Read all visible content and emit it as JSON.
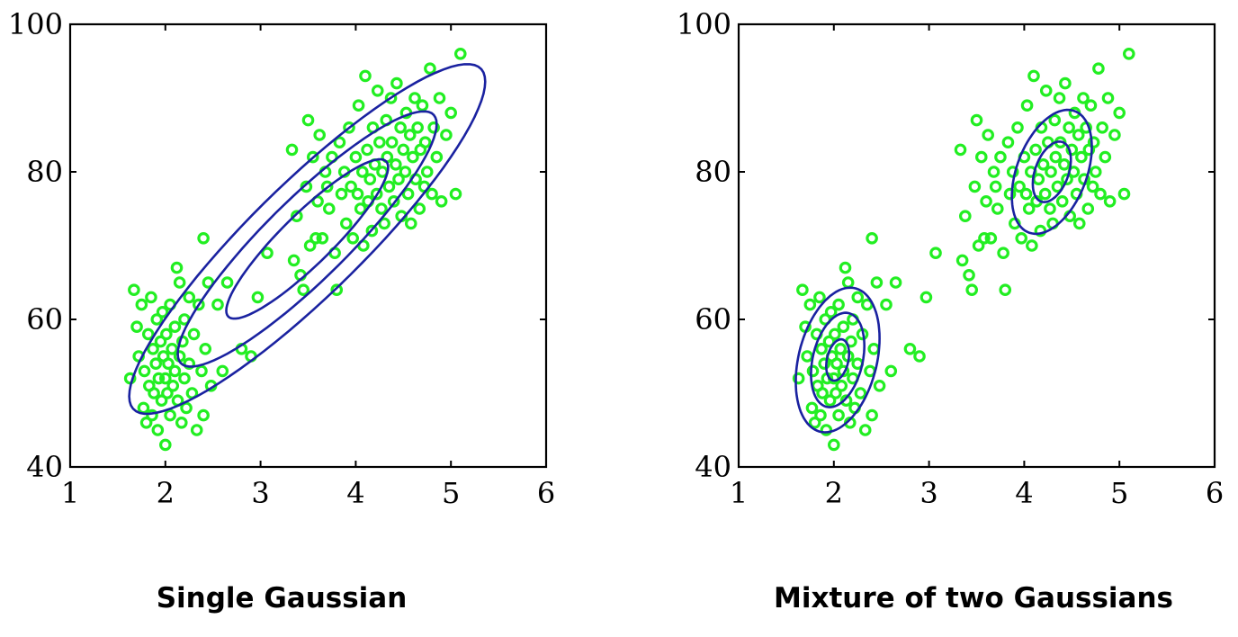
{
  "chart_data": [
    {
      "type": "scatter",
      "caption": "Single Gaussian",
      "xlim": [
        1,
        6
      ],
      "ylim": [
        40,
        100
      ],
      "xticks": [
        "1",
        "2",
        "3",
        "4",
        "5",
        "6"
      ],
      "yticks": [
        "40",
        "60",
        "80",
        "100"
      ],
      "grid": false,
      "marker_color": "#22ee22",
      "contour_color": "#1a22a0",
      "contours": [
        {
          "cx": 3.49,
          "cy": 70.9,
          "rx": 0.85,
          "ry": 10.8,
          "rho": 0.9
        },
        {
          "cx": 3.49,
          "cy": 70.9,
          "rx": 1.36,
          "ry": 17.3,
          "rho": 0.9
        },
        {
          "cx": 3.49,
          "cy": 70.9,
          "rx": 1.87,
          "ry": 23.7,
          "rho": 0.9
        }
      ]
    },
    {
      "type": "scatter",
      "caption": "Mixture of two Gaussians",
      "xlim": [
        1,
        6
      ],
      "ylim": [
        40,
        100
      ],
      "xticks": [
        "1",
        "2",
        "3",
        "4",
        "5",
        "6"
      ],
      "yticks": [
        "40",
        "60",
        "80",
        "100"
      ],
      "grid": false,
      "marker_color": "#22ee22",
      "contour_color": "#1a22a0",
      "contours": [
        {
          "cx": 2.04,
          "cy": 54.5,
          "rx": 0.12,
          "ry": 2.8,
          "rho": 0.3
        },
        {
          "cx": 2.04,
          "cy": 54.5,
          "rx": 0.28,
          "ry": 6.4,
          "rho": 0.3
        },
        {
          "cx": 2.04,
          "cy": 54.5,
          "rx": 0.44,
          "ry": 9.8,
          "rho": 0.3
        },
        {
          "cx": 4.29,
          "cy": 80.0,
          "rx": 0.2,
          "ry": 4.1,
          "rho": 0.4
        },
        {
          "cx": 4.29,
          "cy": 80.0,
          "rx": 0.42,
          "ry": 8.4,
          "rho": 0.4
        }
      ]
    }
  ],
  "scatter_points": [
    [
      1.63,
      52
    ],
    [
      1.67,
      64
    ],
    [
      1.7,
      59
    ],
    [
      1.72,
      55
    ],
    [
      1.75,
      62
    ],
    [
      1.77,
      48
    ],
    [
      1.78,
      53
    ],
    [
      1.8,
      46
    ],
    [
      1.82,
      58
    ],
    [
      1.83,
      51
    ],
    [
      1.85,
      63
    ],
    [
      1.86,
      47
    ],
    [
      1.87,
      56
    ],
    [
      1.88,
      50
    ],
    [
      1.9,
      54
    ],
    [
      1.91,
      60
    ],
    [
      1.92,
      45
    ],
    [
      1.93,
      52
    ],
    [
      1.95,
      57
    ],
    [
      1.96,
      49
    ],
    [
      1.97,
      61
    ],
    [
      1.98,
      55
    ],
    [
      2.0,
      43
    ],
    [
      2.0,
      52
    ],
    [
      2.01,
      58
    ],
    [
      2.02,
      50
    ],
    [
      2.03,
      54
    ],
    [
      2.05,
      47
    ],
    [
      2.05,
      62
    ],
    [
      2.07,
      56
    ],
    [
      2.08,
      51
    ],
    [
      2.1,
      59
    ],
    [
      2.1,
      53
    ],
    [
      2.12,
      67
    ],
    [
      2.13,
      49
    ],
    [
      2.15,
      55
    ],
    [
      2.15,
      65
    ],
    [
      2.17,
      46
    ],
    [
      2.18,
      57
    ],
    [
      2.2,
      52
    ],
    [
      2.2,
      60
    ],
    [
      2.22,
      48
    ],
    [
      2.25,
      63
    ],
    [
      2.25,
      54
    ],
    [
      2.28,
      50
    ],
    [
      2.3,
      58
    ],
    [
      2.33,
      45
    ],
    [
      2.35,
      62
    ],
    [
      2.38,
      53
    ],
    [
      2.4,
      71
    ],
    [
      2.4,
      47
    ],
    [
      2.42,
      56
    ],
    [
      2.45,
      65
    ],
    [
      2.48,
      51
    ],
    [
      2.55,
      62
    ],
    [
      2.6,
      53
    ],
    [
      2.65,
      65
    ],
    [
      2.8,
      56
    ],
    [
      2.9,
      55
    ],
    [
      2.97,
      63
    ],
    [
      3.07,
      69
    ],
    [
      3.33,
      83
    ],
    [
      3.35,
      68
    ],
    [
      3.38,
      74
    ],
    [
      3.42,
      66
    ],
    [
      3.45,
      64
    ],
    [
      3.48,
      78
    ],
    [
      3.5,
      87
    ],
    [
      3.52,
      70
    ],
    [
      3.55,
      82
    ],
    [
      3.58,
      71
    ],
    [
      3.6,
      76
    ],
    [
      3.62,
      85
    ],
    [
      3.65,
      71
    ],
    [
      3.68,
      80
    ],
    [
      3.7,
      78
    ],
    [
      3.72,
      75
    ],
    [
      3.75,
      82
    ],
    [
      3.78,
      69
    ],
    [
      3.8,
      64
    ],
    [
      3.83,
      84
    ],
    [
      3.85,
      77
    ],
    [
      3.88,
      80
    ],
    [
      3.9,
      73
    ],
    [
      3.93,
      86
    ],
    [
      3.95,
      78
    ],
    [
      3.97,
      71
    ],
    [
      4.0,
      82
    ],
    [
      4.02,
      77
    ],
    [
      4.03,
      89
    ],
    [
      4.05,
      75
    ],
    [
      4.07,
      80
    ],
    [
      4.08,
      70
    ],
    [
      4.1,
      93
    ],
    [
      4.12,
      83
    ],
    [
      4.13,
      76
    ],
    [
      4.15,
      79
    ],
    [
      4.17,
      72
    ],
    [
      4.18,
      86
    ],
    [
      4.2,
      81
    ],
    [
      4.22,
      77
    ],
    [
      4.23,
      91
    ],
    [
      4.25,
      84
    ],
    [
      4.27,
      75
    ],
    [
      4.28,
      80
    ],
    [
      4.3,
      73
    ],
    [
      4.32,
      87
    ],
    [
      4.33,
      82
    ],
    [
      4.35,
      78
    ],
    [
      4.37,
      90
    ],
    [
      4.38,
      84
    ],
    [
      4.4,
      76
    ],
    [
      4.42,
      81
    ],
    [
      4.43,
      92
    ],
    [
      4.45,
      79
    ],
    [
      4.47,
      86
    ],
    [
      4.48,
      74
    ],
    [
      4.5,
      83
    ],
    [
      4.52,
      80
    ],
    [
      4.53,
      88
    ],
    [
      4.55,
      77
    ],
    [
      4.57,
      85
    ],
    [
      4.58,
      73
    ],
    [
      4.6,
      82
    ],
    [
      4.62,
      90
    ],
    [
      4.63,
      79
    ],
    [
      4.65,
      86
    ],
    [
      4.67,
      75
    ],
    [
      4.68,
      83
    ],
    [
      4.7,
      89
    ],
    [
      4.72,
      78
    ],
    [
      4.73,
      84
    ],
    [
      4.75,
      80
    ],
    [
      4.78,
      94
    ],
    [
      4.8,
      77
    ],
    [
      4.82,
      86
    ],
    [
      4.85,
      82
    ],
    [
      4.88,
      90
    ],
    [
      4.9,
      76
    ],
    [
      4.95,
      85
    ],
    [
      5.0,
      88
    ],
    [
      5.05,
      77
    ],
    [
      5.1,
      96
    ]
  ],
  "captions": [
    "Single Gaussian",
    "Mixture of two Gaussians"
  ]
}
